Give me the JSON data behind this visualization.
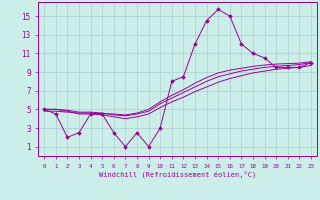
{
  "xlabel": "Windchill (Refroidissement éolien,°C)",
  "bg_color": "#cceee8",
  "grid_color": "#aacccc",
  "line_color": "#990099",
  "x_data": [
    0,
    1,
    2,
    3,
    4,
    5,
    6,
    7,
    8,
    9,
    10,
    11,
    12,
    13,
    14,
    15,
    16,
    17,
    18,
    19,
    20,
    21,
    22,
    23
  ],
  "y_main": [
    5,
    4.5,
    2,
    2.5,
    4.5,
    4.5,
    2.5,
    1,
    2.5,
    1,
    3,
    8,
    8.5,
    12,
    14.5,
    15.7,
    15,
    12,
    11,
    10.5,
    9.5,
    9.5,
    9.5,
    10
  ],
  "y_line1": [
    5.0,
    5.0,
    4.8,
    4.5,
    4.5,
    4.4,
    4.2,
    4.0,
    4.2,
    4.5,
    5.2,
    5.8,
    6.3,
    6.9,
    7.4,
    7.9,
    8.3,
    8.6,
    8.9,
    9.1,
    9.3,
    9.4,
    9.5,
    9.7
  ],
  "y_line2": [
    5.0,
    5.0,
    4.9,
    4.7,
    4.7,
    4.6,
    4.4,
    4.3,
    4.5,
    4.8,
    5.6,
    6.2,
    6.8,
    7.4,
    8.0,
    8.5,
    8.8,
    9.1,
    9.3,
    9.5,
    9.6,
    9.7,
    9.8,
    10.0
  ],
  "y_line3": [
    4.8,
    4.8,
    4.7,
    4.6,
    4.6,
    4.55,
    4.5,
    4.4,
    4.6,
    5.0,
    5.8,
    6.5,
    7.1,
    7.8,
    8.4,
    8.9,
    9.2,
    9.4,
    9.6,
    9.75,
    9.85,
    9.9,
    9.95,
    10.1
  ],
  "yticks": [
    1,
    3,
    5,
    7,
    9,
    11,
    13,
    15
  ],
  "ylim": [
    0,
    16.5
  ],
  "xlim": [
    -0.5,
    23.5
  ]
}
